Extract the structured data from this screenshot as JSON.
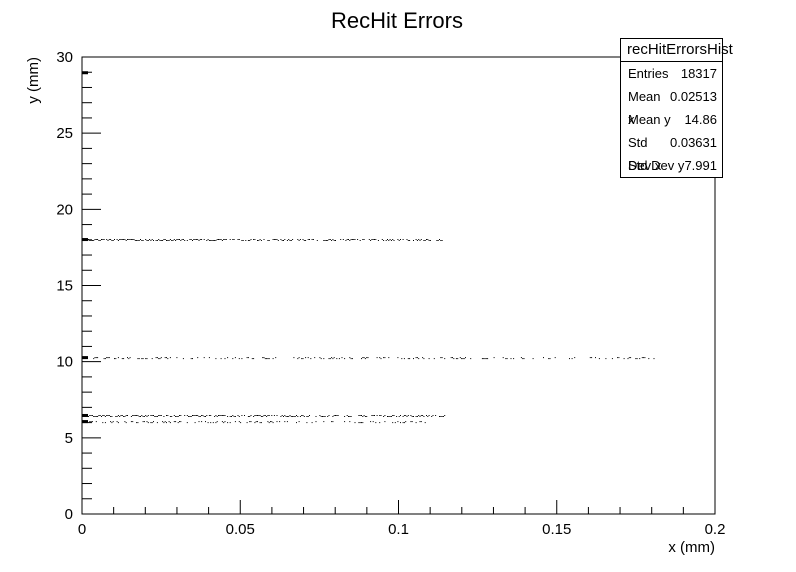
{
  "chart_data": {
    "type": "scatter",
    "title": "RecHit Errors",
    "xlabel": "x (mm)",
    "ylabel": "y (mm)",
    "xlim": [
      0,
      0.2
    ],
    "ylim": [
      0,
      30
    ],
    "xticks": [
      "0",
      "0.05",
      "0.1",
      "0.15",
      "0.2"
    ],
    "yticks": [
      "0",
      "5",
      "10",
      "15",
      "20",
      "25",
      "30"
    ],
    "grid": false,
    "marker_color": "#000000",
    "bands": [
      {
        "y": 29.0,
        "x_min": 0.0,
        "x_max": 0.001,
        "density": 1.0
      },
      {
        "y": 18.05,
        "x_min": 0.0,
        "x_max": 0.114,
        "density": 0.9
      },
      {
        "y": 10.3,
        "x_min": 0.0,
        "x_max": 0.182,
        "density": 0.45
      },
      {
        "y": 6.5,
        "x_min": 0.0,
        "x_max": 0.115,
        "density": 0.9
      },
      {
        "y": 6.1,
        "x_min": 0.0,
        "x_max": 0.109,
        "density": 0.5
      }
    ]
  },
  "stats": {
    "name": "recHitErrorsHist",
    "rows": [
      {
        "label": "Entries",
        "value": "18317"
      },
      {
        "label": "Mean x",
        "value": "0.02513"
      },
      {
        "label": "Mean y",
        "value": "14.86"
      },
      {
        "label": "Std Dev x",
        "value": "0.03631"
      },
      {
        "label": "Std Dev y",
        "value": "7.991"
      }
    ]
  }
}
